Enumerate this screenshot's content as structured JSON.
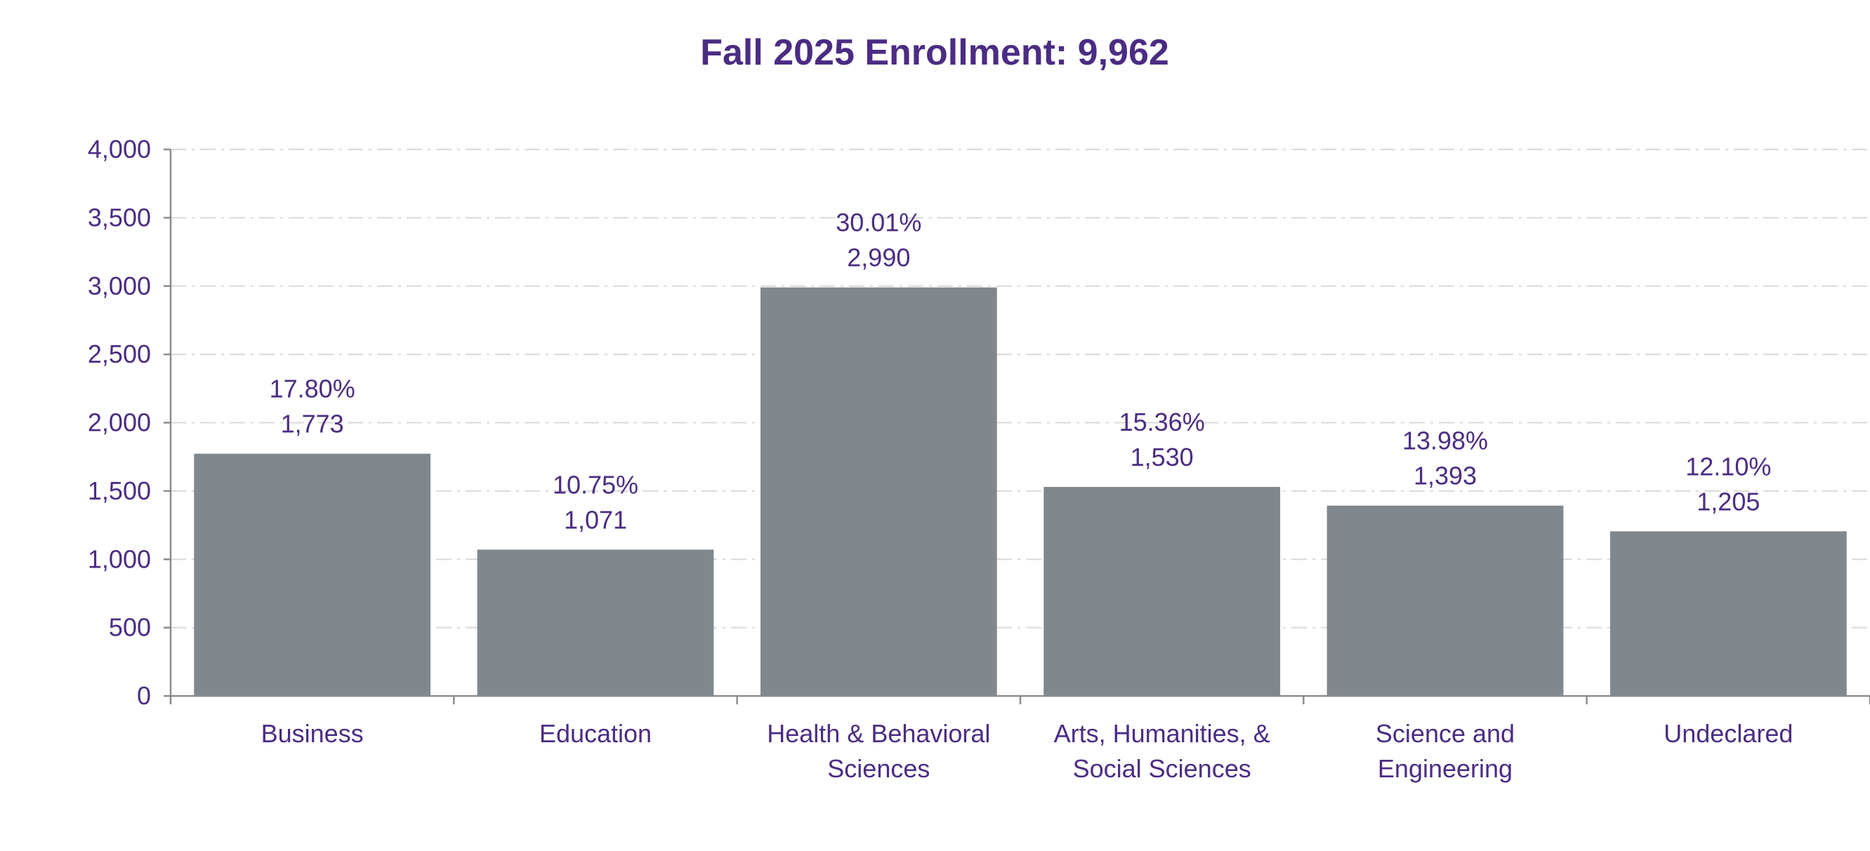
{
  "chart_data": {
    "type": "bar",
    "title": "Fall 2025 Enrollment: 9,962",
    "categories": [
      [
        "Business"
      ],
      [
        "Education"
      ],
      [
        "Health & Behavioral",
        "Sciences"
      ],
      [
        "Arts, Humanities, &",
        "Social Sciences"
      ],
      [
        "Science and",
        "Engineering"
      ],
      [
        "Undeclared"
      ]
    ],
    "values": [
      1773,
      1071,
      2990,
      1530,
      1393,
      1205
    ],
    "value_labels": [
      "1,773",
      "1,071",
      "2,990",
      "1,530",
      "1,393",
      "1,205"
    ],
    "percent_labels": [
      "17.80%",
      "10.75%",
      "30.01%",
      "15.36%",
      "13.98%",
      "12.10%"
    ],
    "y_ticks": [
      "0",
      "500",
      "1,000",
      "1,500",
      "2,000",
      "2,500",
      "3,000",
      "3,500",
      "4,000"
    ],
    "ylim": [
      0,
      4000
    ],
    "grid": true,
    "legend": "none",
    "colors": {
      "bar": "#80888E",
      "text": "#4B2C83",
      "grid": "#d9d9d9",
      "axis": "#8c8c8c"
    }
  }
}
